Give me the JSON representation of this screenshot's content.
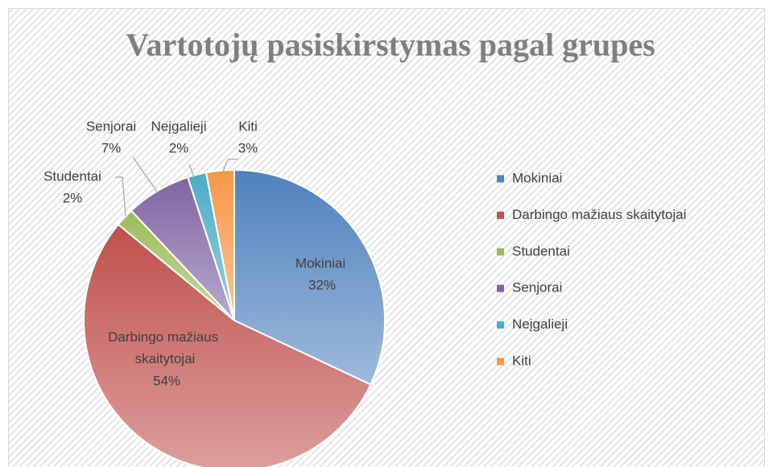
{
  "chart_data": {
    "type": "pie",
    "title": "Vartotojų pasiskirstymas pagal grupes",
    "categories": [
      "Mokiniai",
      "Darbingo mažiaus skaitytojai",
      "Studentai",
      "Senjorai",
      "Neįgalieji",
      "Kiti"
    ],
    "values": [
      32,
      54,
      2,
      7,
      2,
      3
    ],
    "value_labels": [
      "32%",
      "54%",
      "2%",
      "7%",
      "2%",
      "3%"
    ],
    "colors": [
      "#4f81bd",
      "#c0504d",
      "#9bbb59",
      "#8064a2",
      "#4bacc6",
      "#f79646"
    ],
    "legend": "right"
  }
}
